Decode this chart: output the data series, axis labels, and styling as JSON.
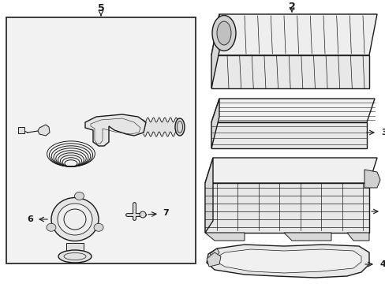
{
  "bg_color": "#ffffff",
  "line_color": "#1a1a1a",
  "box_bg": "#f2f2f2",
  "lw_main": 1.0,
  "lw_thin": 0.5,
  "figsize": [
    4.89,
    3.6
  ],
  "dpi": 100
}
